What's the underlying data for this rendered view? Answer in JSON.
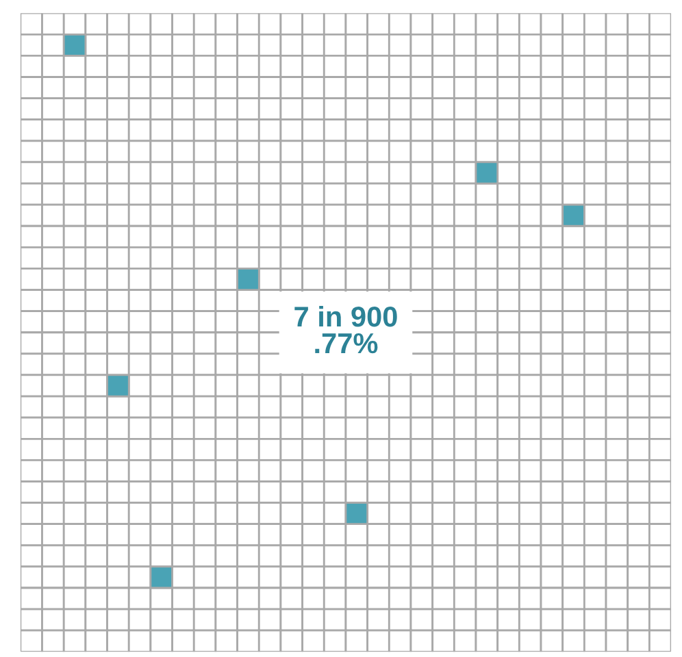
{
  "chart_data": {
    "type": "other",
    "values": [
      7
    ],
    "value_labels": [
      "7 in 900"
    ],
    "annotations": [
      ".77%"
    ]
  }
}
